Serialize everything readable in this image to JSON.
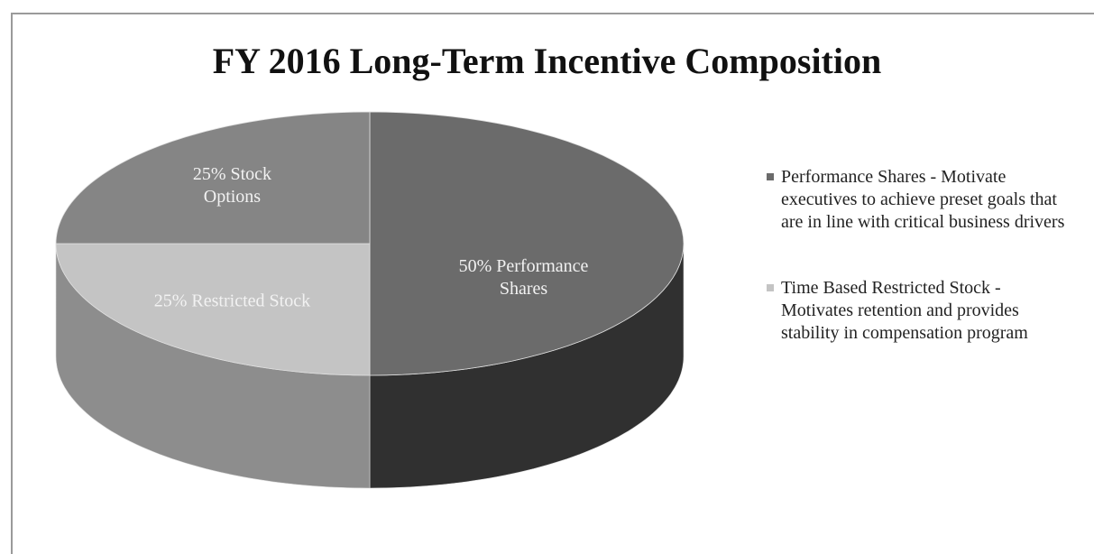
{
  "chart_data": {
    "type": "pie",
    "title": "FY 2016 Long-Term Incentive Composition",
    "categories": [
      "Performance Shares - Motivate executives to achieve preset goals that are in line with critical business drivers",
      "Time Based Restricted Stock - Motivates retention and provides stability in compensation program",
      null
    ],
    "values": [
      50,
      25,
      25
    ],
    "value_labels": [
      "50% Performance Shares",
      "25% Restricted Stock",
      "25% Stock Options"
    ],
    "colors": [
      "#6b6b6b",
      "#c4c4c4",
      "#858585"
    ],
    "legend": "right"
  }
}
